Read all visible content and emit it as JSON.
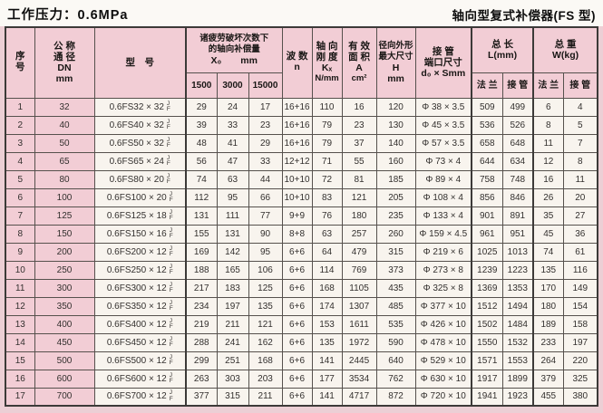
{
  "page": {
    "title_left": "工作压力：0.6MPa",
    "title_right": "轴向型复式补偿器(FS 型)"
  },
  "table": {
    "headers": {
      "seq": [
        "序",
        "号"
      ],
      "dn": [
        "公 称",
        "通 径",
        "DN",
        "mm"
      ],
      "model": "型　号",
      "x0_group": [
        "诸疲劳破坏次数下",
        "的轴向补偿量",
        "X₀　　mm"
      ],
      "x0_cols": [
        "1500",
        "3000",
        "15000"
      ],
      "waves": {
        "label": "波 数",
        "symbol": "n"
      },
      "stiffness": [
        "轴 向",
        "刚 度",
        "Kₓ",
        "N/mm"
      ],
      "area": [
        "有 效",
        "面 积",
        "A",
        "cm²"
      ],
      "radial": [
        "径向外形",
        "最大尺寸",
        "H",
        "mm"
      ],
      "pipe_end": [
        "接 管",
        "端口尺寸",
        "d₀ × Smm"
      ],
      "length": {
        "label": "总 长",
        "unit": "L(mm)",
        "col_flange": "法 兰",
        "col_pipe": "接 管"
      },
      "weight": {
        "label": "总 重",
        "unit": "W(kg)",
        "col_flange": "法 兰",
        "col_pipe": "接 管"
      }
    },
    "model_suffix": {
      "top": "J",
      "bottom": "F"
    },
    "col_keys": [
      "seq",
      "dn",
      "model",
      "x0-1500",
      "x0-3000",
      "x0-15000",
      "waves",
      "stiffness",
      "area",
      "h",
      "pipe-end",
      "length-flange",
      "length-pipe",
      "weight-flange",
      "weight-pipe"
    ],
    "rows": [
      [
        1,
        32,
        "0.6FS32 × 32",
        29,
        24,
        17,
        "16+16",
        110,
        16,
        120,
        "Φ 38 × 3.5",
        509,
        499,
        6,
        4
      ],
      [
        2,
        40,
        "0.6FS40 × 32",
        39,
        33,
        23,
        "16+16",
        79,
        23,
        130,
        "Φ 45 × 3.5",
        536,
        526,
        8,
        5
      ],
      [
        3,
        50,
        "0.6FS50 × 32",
        48,
        41,
        29,
        "16+16",
        79,
        37,
        140,
        "Φ 57 × 3.5",
        658,
        648,
        11,
        7
      ],
      [
        4,
        65,
        "0.6FS65 × 24",
        56,
        47,
        33,
        "12+12",
        71,
        55,
        160,
        "Φ 73 × 4",
        644,
        634,
        12,
        8
      ],
      [
        5,
        80,
        "0.6FS80 × 20",
        74,
        63,
        44,
        "10+10",
        72,
        81,
        185,
        "Φ 89 × 4",
        758,
        748,
        16,
        11
      ],
      [
        6,
        100,
        "0.6FS100 × 20",
        112,
        95,
        66,
        "10+10",
        83,
        121,
        205,
        "Φ 108 × 4",
        856,
        846,
        26,
        20
      ],
      [
        7,
        125,
        "0.6FS125 × 18",
        131,
        111,
        77,
        "9+9",
        76,
        180,
        235,
        "Φ 133 × 4",
        901,
        891,
        35,
        27
      ],
      [
        8,
        150,
        "0.6FS150 × 16",
        155,
        131,
        90,
        "8+8",
        63,
        257,
        260,
        "Φ 159 × 4.5",
        961,
        951,
        45,
        36
      ],
      [
        9,
        200,
        "0.6FS200 × 12",
        169,
        142,
        95,
        "6+6",
        64,
        479,
        315,
        "Φ 219 × 6",
        1025,
        1013,
        74,
        61
      ],
      [
        10,
        250,
        "0.6FS250 × 12",
        188,
        165,
        106,
        "6+6",
        114,
        769,
        373,
        "Φ 273 × 8",
        1239,
        1223,
        135,
        116
      ],
      [
        11,
        300,
        "0.6FS300 × 12",
        217,
        183,
        125,
        "6+6",
        168,
        1105,
        435,
        "Φ 325 × 8",
        1369,
        1353,
        170,
        149
      ],
      [
        12,
        350,
        "0.6FS350 × 12",
        234,
        197,
        135,
        "6+6",
        174,
        1307,
        485,
        "Φ 377 × 10",
        1512,
        1494,
        180,
        154
      ],
      [
        13,
        400,
        "0.6FS400 × 12",
        219,
        211,
        121,
        "6+6",
        153,
        1611,
        535,
        "Φ 426 × 10",
        1502,
        1484,
        189,
        158
      ],
      [
        14,
        450,
        "0.6FS450 × 12",
        288,
        241,
        162,
        "6+6",
        135,
        1972,
        590,
        "Φ 478 × 10",
        1550,
        1532,
        233,
        197
      ],
      [
        15,
        500,
        "0.6FS500 × 12",
        299,
        251,
        168,
        "6+6",
        141,
        2445,
        640,
        "Φ 529 × 10",
        1571,
        1553,
        264,
        220
      ],
      [
        16,
        600,
        "0.6FS600 × 12",
        263,
        303,
        203,
        "6+6",
        177,
        3534,
        762,
        "Φ 630 × 10",
        1917,
        1899,
        379,
        325
      ],
      [
        17,
        700,
        "0.6FS700 × 12",
        377,
        315,
        211,
        "6+6",
        141,
        4717,
        872,
        "Φ 720 × 10",
        1941,
        1923,
        455,
        380
      ]
    ]
  }
}
